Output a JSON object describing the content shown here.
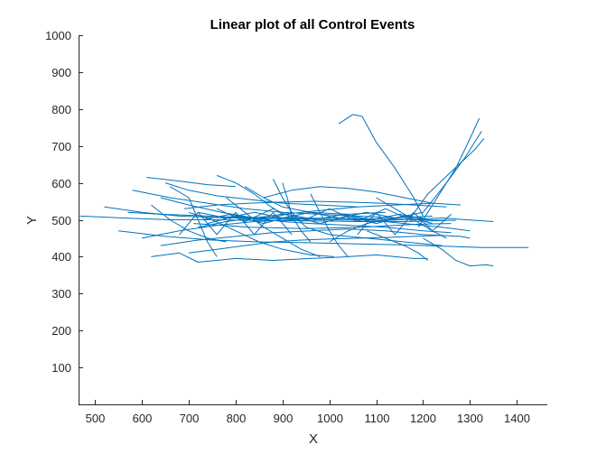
{
  "chart_data": {
    "type": "line",
    "title": "Linear plot of all Control Events",
    "xlabel": "X",
    "ylabel": "Y",
    "xlim": [
      465,
      1465
    ],
    "ylim": [
      0,
      1000
    ],
    "xticks": [
      "500",
      "600",
      "700",
      "800",
      "900",
      "1000",
      "1100",
      "1200",
      "1300",
      "1400"
    ],
    "yticks": [
      "100",
      "200",
      "300",
      "400",
      "500",
      "600",
      "700",
      "800",
      "900",
      "1000"
    ],
    "grid": false,
    "legend": "none",
    "series_color": "#0072BD",
    "series": [
      {
        "values": [
          [
            468,
            510
          ],
          [
            560,
            505
          ],
          [
            660,
            500
          ],
          [
            760,
            500
          ],
          [
            860,
            498
          ],
          [
            960,
            497
          ],
          [
            1060,
            495
          ],
          [
            1160,
            495
          ],
          [
            1250,
            498
          ]
        ]
      },
      {
        "values": [
          [
            520,
            535
          ],
          [
            600,
            520
          ],
          [
            680,
            510
          ],
          [
            780,
            505
          ],
          [
            900,
            503
          ],
          [
            1000,
            500
          ],
          [
            1120,
            498
          ],
          [
            1240,
            505
          ],
          [
            1350,
            495
          ]
        ]
      },
      {
        "values": [
          [
            550,
            470
          ],
          [
            650,
            455
          ],
          [
            750,
            445
          ],
          [
            850,
            440
          ],
          [
            950,
            438
          ],
          [
            1050,
            435
          ],
          [
            1150,
            432
          ],
          [
            1250,
            428
          ],
          [
            1330,
            425
          ],
          [
            1425,
            425
          ]
        ]
      },
      {
        "values": [
          [
            620,
            400
          ],
          [
            680,
            410
          ],
          [
            720,
            385
          ],
          [
            800,
            395
          ],
          [
            880,
            390
          ],
          [
            960,
            395
          ],
          [
            1040,
            400
          ],
          [
            1100,
            405
          ],
          [
            1180,
            395
          ],
          [
            1210,
            395
          ]
        ]
      },
      {
        "values": [
          [
            610,
            615
          ],
          [
            680,
            605
          ],
          [
            740,
            595
          ],
          [
            800,
            590
          ]
        ]
      },
      {
        "values": [
          [
            640,
            560
          ],
          [
            700,
            540
          ],
          [
            770,
            520
          ],
          [
            840,
            505
          ],
          [
            900,
            495
          ],
          [
            960,
            490
          ],
          [
            1040,
            485
          ],
          [
            1120,
            480
          ],
          [
            1200,
            470
          ],
          [
            1260,
            465
          ]
        ]
      },
      {
        "values": [
          [
            880,
            610
          ],
          [
            900,
            560
          ],
          [
            920,
            520
          ],
          [
            950,
            480
          ],
          [
            1000,
            460
          ],
          [
            1080,
            450
          ],
          [
            1160,
            440
          ],
          [
            1240,
            430
          ]
        ]
      },
      {
        "values": [
          [
            1020,
            760
          ],
          [
            1050,
            785
          ],
          [
            1070,
            780
          ],
          [
            1100,
            710
          ],
          [
            1140,
            640
          ],
          [
            1180,
            560
          ],
          [
            1200,
            510
          ]
        ]
      },
      {
        "values": [
          [
            1190,
            480
          ],
          [
            1230,
            560
          ],
          [
            1270,
            640
          ],
          [
            1300,
            720
          ],
          [
            1320,
            775
          ]
        ]
      },
      {
        "values": [
          [
            1200,
            520
          ],
          [
            1250,
            600
          ],
          [
            1290,
            670
          ],
          [
            1325,
            740
          ]
        ]
      },
      {
        "values": [
          [
            1170,
            500
          ],
          [
            1210,
            570
          ],
          [
            1260,
            630
          ],
          [
            1310,
            690
          ],
          [
            1330,
            720
          ]
        ]
      },
      {
        "values": [
          [
            700,
            520
          ],
          [
            750,
            500
          ],
          [
            800,
            470
          ],
          [
            850,
            440
          ],
          [
            900,
            420
          ],
          [
            960,
            405
          ],
          [
            1010,
            400
          ]
        ]
      },
      {
        "values": [
          [
            720,
            480
          ],
          [
            780,
            495
          ],
          [
            840,
            505
          ],
          [
            900,
            515
          ],
          [
            980,
            525
          ],
          [
            1060,
            535
          ],
          [
            1140,
            540
          ],
          [
            1220,
            545
          ],
          [
            1280,
            540
          ]
        ]
      },
      {
        "values": [
          [
            580,
            580
          ],
          [
            660,
            560
          ],
          [
            740,
            545
          ],
          [
            820,
            530
          ],
          [
            900,
            520
          ],
          [
            980,
            515
          ],
          [
            1060,
            510
          ],
          [
            1140,
            505
          ],
          [
            1220,
            510
          ]
        ]
      },
      {
        "values": [
          [
            600,
            450
          ],
          [
            680,
            470
          ],
          [
            760,
            485
          ],
          [
            840,
            495
          ],
          [
            920,
            500
          ],
          [
            1000,
            505
          ],
          [
            1080,
            500
          ],
          [
            1160,
            490
          ],
          [
            1240,
            480
          ],
          [
            1300,
            470
          ]
        ]
      },
      {
        "values": [
          [
            640,
            430
          ],
          [
            720,
            445
          ],
          [
            800,
            455
          ],
          [
            880,
            465
          ],
          [
            960,
            470
          ],
          [
            1040,
            475
          ],
          [
            1120,
            470
          ],
          [
            1200,
            460
          ],
          [
            1280,
            455
          ],
          [
            1300,
            450
          ]
        ]
      },
      {
        "values": [
          [
            690,
            530
          ],
          [
            760,
            540
          ],
          [
            830,
            545
          ],
          [
            900,
            548
          ],
          [
            970,
            550
          ],
          [
            1040,
            548
          ],
          [
            1110,
            545
          ],
          [
            1180,
            540
          ],
          [
            1250,
            535
          ]
        ]
      },
      {
        "values": [
          [
            710,
            490
          ],
          [
            770,
            485
          ],
          [
            830,
            480
          ],
          [
            890,
            478
          ],
          [
            950,
            476
          ],
          [
            1010,
            478
          ],
          [
            1070,
            480
          ],
          [
            1130,
            484
          ],
          [
            1190,
            488
          ],
          [
            1260,
            490
          ]
        ]
      },
      {
        "values": [
          [
            650,
            600
          ],
          [
            700,
            580
          ],
          [
            760,
            565
          ],
          [
            830,
            555
          ],
          [
            900,
            545
          ],
          [
            980,
            540
          ],
          [
            1060,
            535
          ]
        ]
      },
      {
        "values": [
          [
            760,
            620
          ],
          [
            800,
            600
          ],
          [
            840,
            570
          ],
          [
            870,
            540
          ],
          [
            900,
            515
          ]
        ]
      },
      {
        "values": [
          [
            820,
            590
          ],
          [
            860,
            560
          ],
          [
            900,
            535
          ],
          [
            960,
            520
          ],
          [
            1040,
            515
          ],
          [
            1120,
            520
          ]
        ]
      },
      {
        "values": [
          [
            860,
            560
          ],
          [
            920,
            580
          ],
          [
            980,
            590
          ],
          [
            1040,
            585
          ],
          [
            1100,
            575
          ],
          [
            1160,
            560
          ],
          [
            1220,
            545
          ]
        ]
      },
      {
        "values": [
          [
            1200,
            450
          ],
          [
            1240,
            420
          ],
          [
            1270,
            390
          ],
          [
            1300,
            375
          ],
          [
            1335,
            378
          ],
          [
            1350,
            375
          ]
        ]
      },
      {
        "values": [
          [
            1080,
            470
          ],
          [
            1120,
            450
          ],
          [
            1160,
            430
          ],
          [
            1190,
            410
          ],
          [
            1210,
            390
          ]
        ]
      },
      {
        "values": [
          [
            700,
            410
          ],
          [
            760,
            420
          ],
          [
            820,
            430
          ],
          [
            880,
            440
          ],
          [
            940,
            445
          ],
          [
            1000,
            448
          ],
          [
            1060,
            450
          ],
          [
            1120,
            452
          ],
          [
            1180,
            455
          ],
          [
            1240,
            458
          ]
        ]
      },
      {
        "values": [
          [
            570,
            520
          ],
          [
            640,
            515
          ],
          [
            710,
            512
          ],
          [
            780,
            508
          ],
          [
            850,
            506
          ],
          [
            920,
            505
          ],
          [
            990,
            504
          ],
          [
            1060,
            503
          ],
          [
            1130,
            502
          ],
          [
            1200,
            500
          ],
          [
            1270,
            498
          ]
        ]
      },
      {
        "values": [
          [
            730,
            500
          ],
          [
            790,
            515
          ],
          [
            850,
            500
          ],
          [
            910,
            515
          ],
          [
            970,
            500
          ],
          [
            1030,
            515
          ],
          [
            1090,
            500
          ],
          [
            1150,
            515
          ],
          [
            1210,
            500
          ]
        ]
      },
      {
        "values": [
          [
            720,
            520
          ],
          [
            780,
            505
          ],
          [
            840,
            520
          ],
          [
            900,
            505
          ],
          [
            960,
            520
          ],
          [
            1020,
            505
          ],
          [
            1080,
            520
          ],
          [
            1140,
            505
          ],
          [
            1200,
            520
          ]
        ]
      },
      {
        "values": [
          [
            740,
            490
          ],
          [
            800,
            510
          ],
          [
            860,
            490
          ],
          [
            920,
            510
          ],
          [
            980,
            490
          ],
          [
            1040,
            510
          ],
          [
            1100,
            490
          ],
          [
            1160,
            510
          ],
          [
            1220,
            490
          ]
        ]
      },
      {
        "values": [
          [
            760,
            530
          ],
          [
            820,
            495
          ],
          [
            880,
            530
          ],
          [
            940,
            495
          ],
          [
            1000,
            530
          ],
          [
            1060,
            495
          ],
          [
            1120,
            530
          ],
          [
            1180,
            495
          ]
        ]
      },
      {
        "values": [
          [
            680,
            460
          ],
          [
            720,
            520
          ],
          [
            760,
            460
          ],
          [
            800,
            520
          ],
          [
            840,
            460
          ],
          [
            880,
            520
          ],
          [
            920,
            460
          ]
        ]
      },
      {
        "values": [
          [
            1060,
            460
          ],
          [
            1100,
            520
          ],
          [
            1140,
            460
          ],
          [
            1180,
            520
          ],
          [
            1220,
            470
          ],
          [
            1260,
            515
          ]
        ]
      },
      {
        "values": [
          [
            660,
            590
          ],
          [
            700,
            560
          ],
          [
            720,
            500
          ],
          [
            740,
            440
          ],
          [
            760,
            400
          ]
        ]
      },
      {
        "values": [
          [
            960,
            570
          ],
          [
            980,
            520
          ],
          [
            1000,
            470
          ],
          [
            1020,
            430
          ],
          [
            1040,
            400
          ]
        ]
      },
      {
        "values": [
          [
            780,
            560
          ],
          [
            820,
            520
          ],
          [
            860,
            480
          ],
          [
            900,
            450
          ],
          [
            940,
            420
          ],
          [
            980,
            400
          ]
        ]
      },
      {
        "values": [
          [
            1100,
            560
          ],
          [
            1140,
            530
          ],
          [
            1180,
            500
          ],
          [
            1220,
            470
          ],
          [
            1250,
            450
          ]
        ]
      },
      {
        "values": [
          [
            900,
            600
          ],
          [
            910,
            560
          ],
          [
            920,
            510
          ],
          [
            940,
            470
          ],
          [
            960,
            440
          ]
        ]
      },
      {
        "values": [
          [
            620,
            540
          ],
          [
            660,
            500
          ],
          [
            700,
            470
          ],
          [
            740,
            450
          ],
          [
            780,
            440
          ]
        ]
      },
      {
        "values": [
          [
            1000,
            440
          ],
          [
            1040,
            470
          ],
          [
            1080,
            490
          ],
          [
            1120,
            500
          ],
          [
            1160,
            510
          ],
          [
            1200,
            505
          ]
        ]
      }
    ]
  }
}
